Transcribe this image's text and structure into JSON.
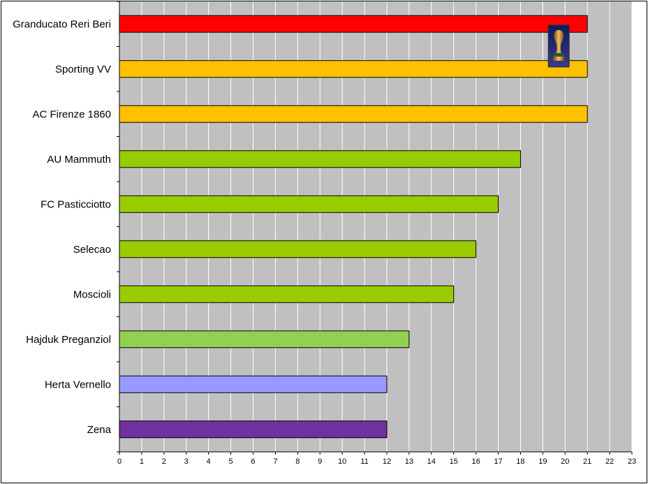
{
  "chart_data": {
    "type": "bar",
    "orientation": "horizontal",
    "title": "",
    "xlabel": "",
    "ylabel": "",
    "xlim": [
      0,
      23
    ],
    "x_ticks": [
      "0",
      "1",
      "2",
      "3",
      "4",
      "5",
      "6",
      "7",
      "8",
      "9",
      "10",
      "11",
      "12",
      "13",
      "14",
      "15",
      "16",
      "17",
      "18",
      "19",
      "20",
      "21",
      "22",
      "23"
    ],
    "grid": "vertical",
    "plot_background": "#c0c0c0",
    "gridline_color": "#ffffff",
    "categories": [
      "Granducato Reri Beri",
      "Sporting VV",
      "AC Firenze 1860",
      "AU Mammuth",
      "FC Pasticciotto",
      "Selecao",
      "Moscioli",
      "Hajduk Preganziol",
      "Herta Vernello",
      "Zena"
    ],
    "values": [
      21,
      21,
      21,
      18,
      17,
      16,
      15,
      13,
      12,
      12
    ],
    "bar_colors": [
      "#ff0000",
      "#ffc000",
      "#ffc000",
      "#99cc00",
      "#99cc00",
      "#99cc00",
      "#99cc00",
      "#92d050",
      "#9999ff",
      "#7030a0"
    ],
    "annotation_icon": "trophy-icon",
    "annotation_category": "Granducato Reri Beri"
  }
}
